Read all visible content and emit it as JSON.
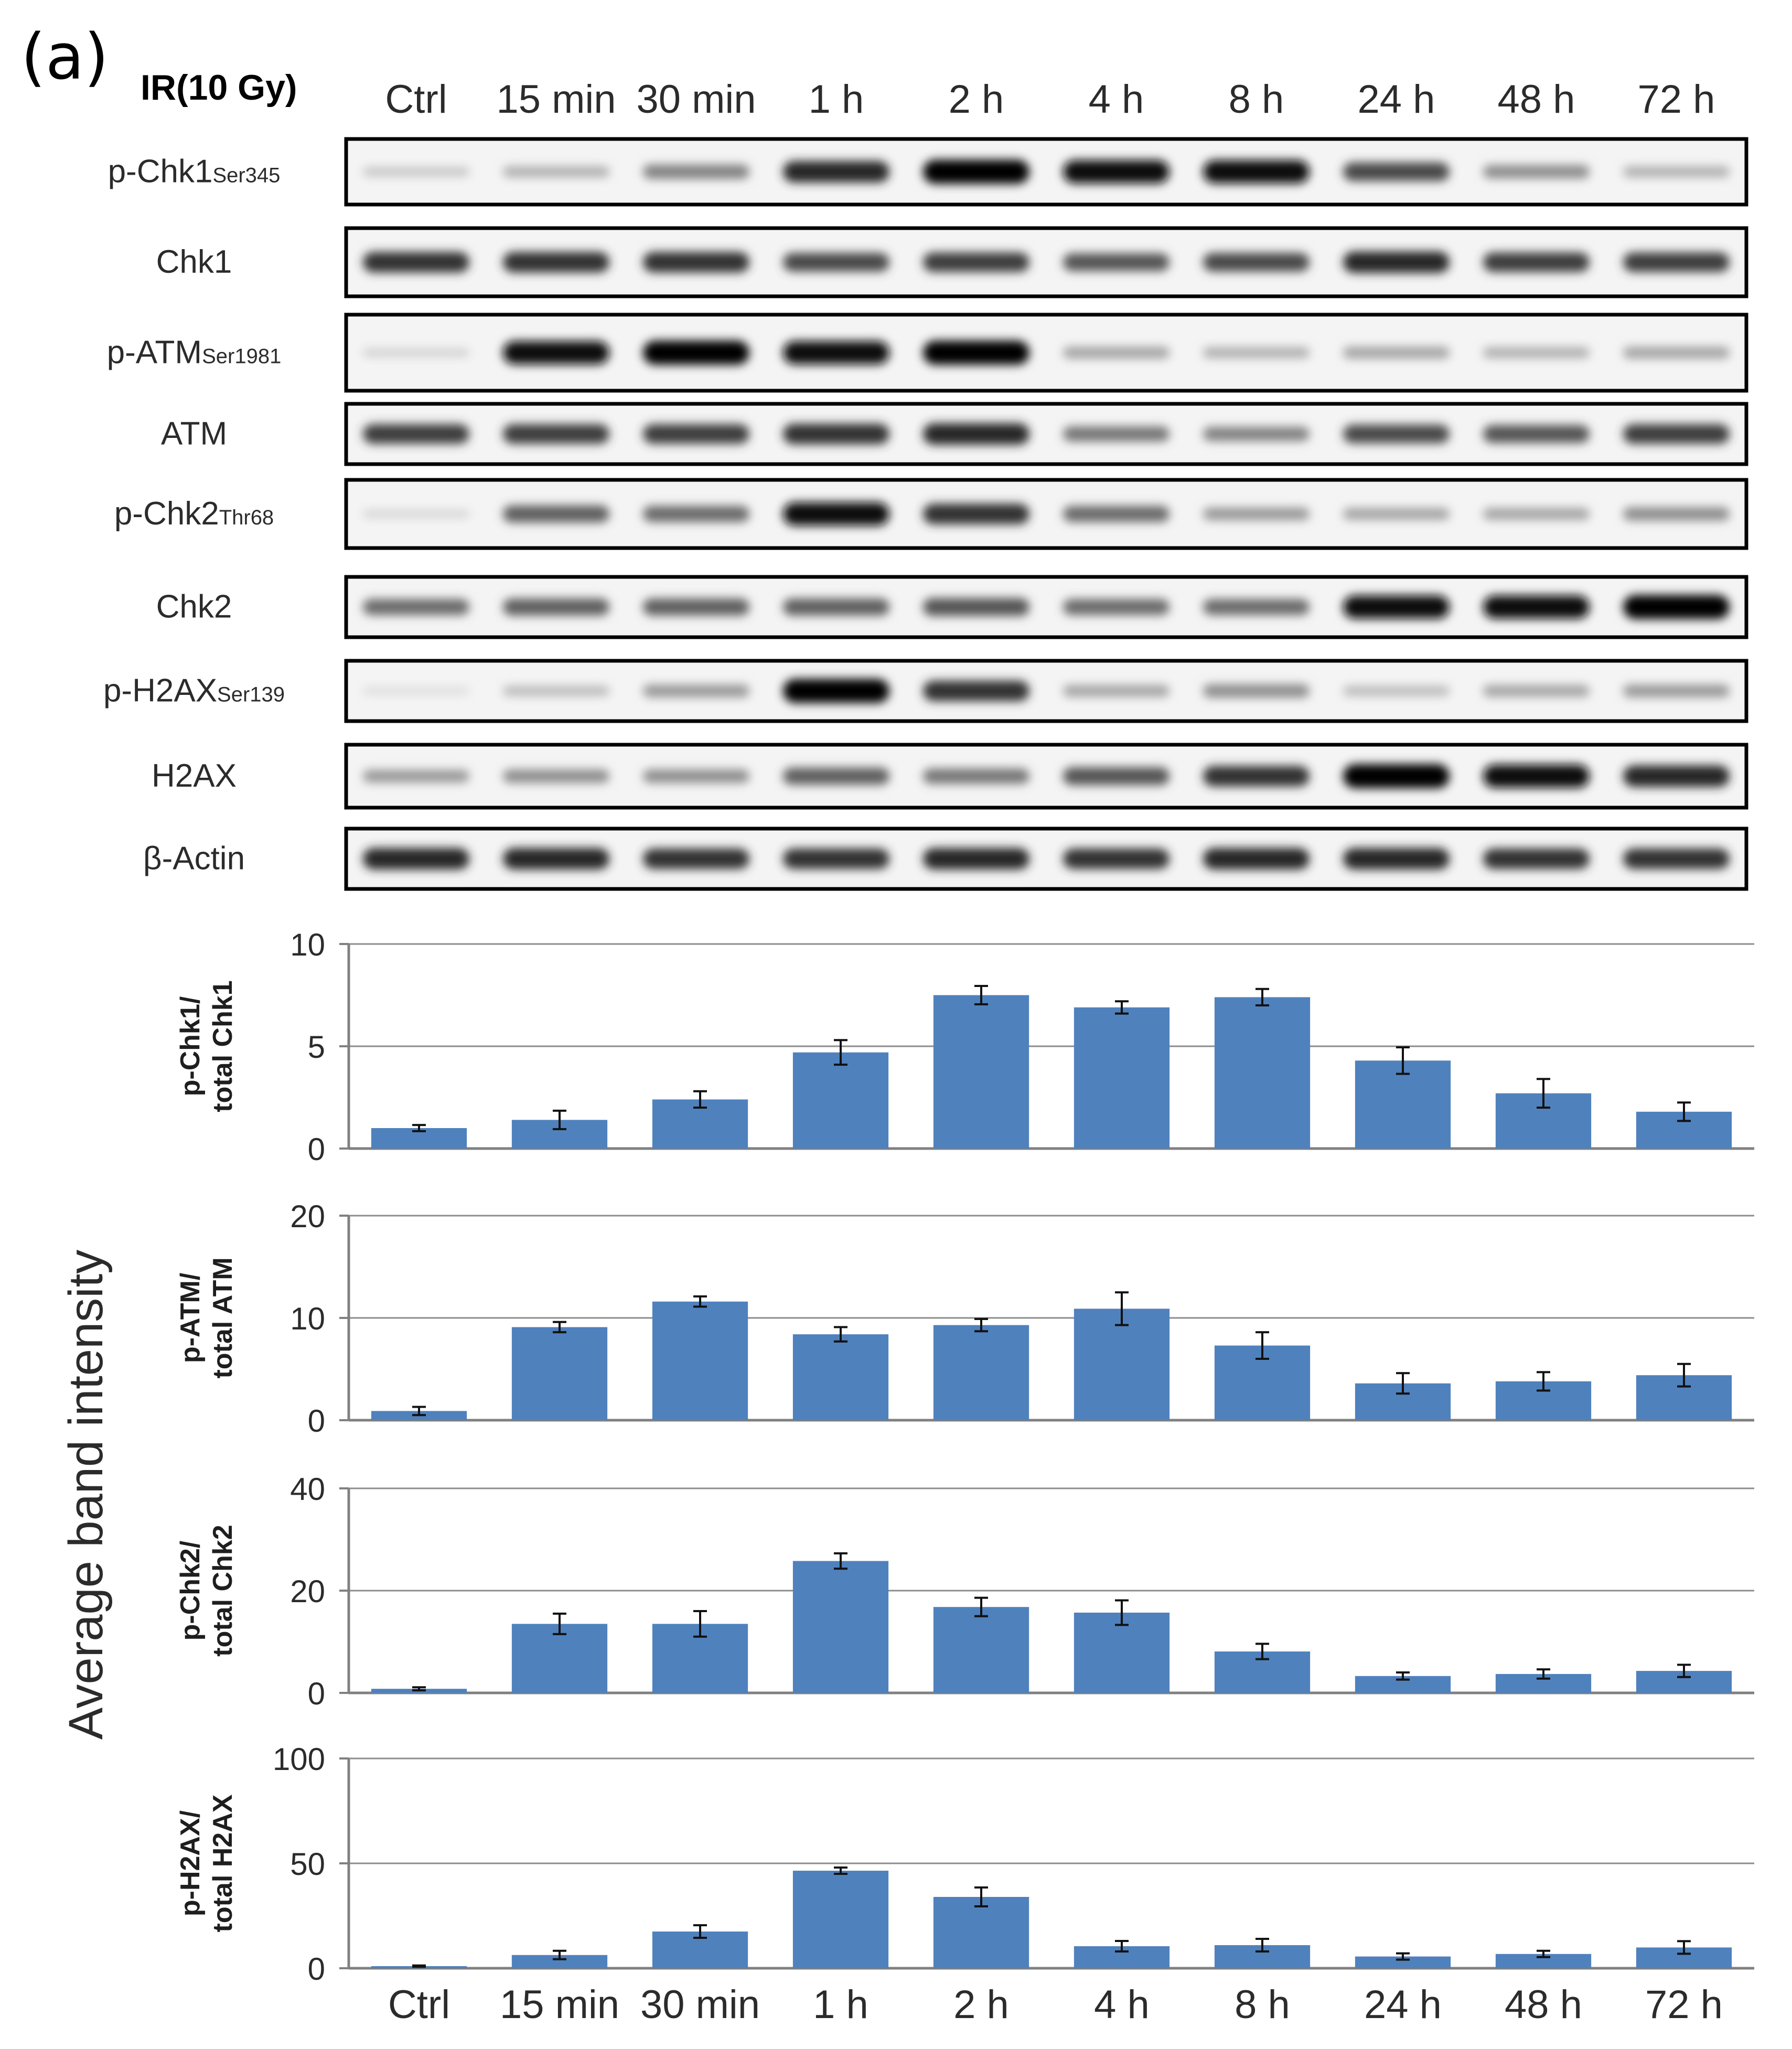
{
  "panel_label": "(a)",
  "treatment_label": "IR(10 Gy)",
  "lanes": [
    "Ctrl",
    "15 min",
    "30 min",
    "1 h",
    "2 h",
    "4 h",
    "8 h",
    "24 h",
    "48 h",
    "72 h"
  ],
  "blot_rows": [
    {
      "name": "p-Chk1",
      "sub": "Ser345",
      "intensity": [
        0.15,
        0.25,
        0.45,
        0.85,
        1.0,
        0.95,
        0.95,
        0.7,
        0.4,
        0.25
      ]
    },
    {
      "name": "Chk1",
      "sub": "",
      "intensity": [
        0.8,
        0.8,
        0.8,
        0.7,
        0.75,
        0.65,
        0.7,
        0.85,
        0.75,
        0.75
      ]
    },
    {
      "name": "p-ATM",
      "sub": "Ser1981",
      "intensity": [
        0.1,
        0.95,
        1.0,
        0.95,
        1.0,
        0.3,
        0.25,
        0.3,
        0.25,
        0.3
      ]
    },
    {
      "name": "ATM",
      "sub": "",
      "intensity": [
        0.75,
        0.75,
        0.75,
        0.8,
        0.85,
        0.5,
        0.45,
        0.7,
        0.65,
        0.75
      ]
    },
    {
      "name": "p-Chk2",
      "sub": "Thr68",
      "intensity": [
        0.08,
        0.6,
        0.55,
        0.95,
        0.8,
        0.55,
        0.35,
        0.3,
        0.3,
        0.4
      ]
    },
    {
      "name": "Chk2",
      "sub": "",
      "intensity": [
        0.55,
        0.6,
        0.6,
        0.6,
        0.65,
        0.55,
        0.55,
        0.95,
        0.95,
        1.0
      ]
    },
    {
      "name": "p-H2AX",
      "sub": "Ser139",
      "intensity": [
        0.05,
        0.2,
        0.35,
        1.0,
        0.8,
        0.3,
        0.4,
        0.2,
        0.3,
        0.35
      ]
    },
    {
      "name": "H2AX",
      "sub": "",
      "intensity": [
        0.35,
        0.4,
        0.4,
        0.6,
        0.5,
        0.65,
        0.8,
        1.0,
        0.95,
        0.85
      ]
    },
    {
      "name": "β-Actin",
      "sub": "",
      "intensity": [
        0.85,
        0.85,
        0.8,
        0.8,
        0.85,
        0.8,
        0.85,
        0.85,
        0.8,
        0.8
      ]
    }
  ],
  "y_axis_title": "Average band intensity",
  "bar_color": "#4f81bd",
  "chart_data": [
    {
      "type": "bar",
      "ylabel_line1": "p-Chk1/",
      "ylabel_line2": "total Chk1",
      "categories": [
        "Ctrl",
        "15 min",
        "30 min",
        "1 h",
        "2 h",
        "4 h",
        "8 h",
        "24 h",
        "48 h",
        "72 h"
      ],
      "values": [
        1.0,
        1.4,
        2.4,
        4.7,
        7.5,
        6.9,
        7.4,
        4.3,
        2.7,
        1.8
      ],
      "errors": [
        0.15,
        0.45,
        0.4,
        0.6,
        0.45,
        0.3,
        0.4,
        0.65,
        0.7,
        0.45
      ],
      "ylim": [
        0,
        10
      ],
      "yticks": [
        0,
        5,
        10
      ]
    },
    {
      "type": "bar",
      "ylabel_line1": "p-ATM/",
      "ylabel_line2": "total ATM",
      "categories": [
        "Ctrl",
        "15 min",
        "30 min",
        "1 h",
        "2 h",
        "4 h",
        "8 h",
        "24 h",
        "48 h",
        "72 h"
      ],
      "values": [
        0.9,
        9.1,
        11.6,
        8.4,
        9.3,
        10.9,
        7.3,
        3.6,
        3.8,
        4.4
      ],
      "errors": [
        0.4,
        0.5,
        0.5,
        0.7,
        0.6,
        1.6,
        1.3,
        1.0,
        0.9,
        1.1
      ],
      "ylim": [
        0,
        20
      ],
      "yticks": [
        0,
        10,
        20
      ]
    },
    {
      "type": "bar",
      "ylabel_line1": "p-Chk2/",
      "ylabel_line2": "total Chk2",
      "categories": [
        "Ctrl",
        "15 min",
        "30 min",
        "1 h",
        "2 h",
        "4 h",
        "8 h",
        "24 h",
        "48 h",
        "72 h"
      ],
      "values": [
        0.8,
        13.5,
        13.5,
        25.8,
        16.8,
        15.7,
        8.1,
        3.3,
        3.7,
        4.3
      ],
      "errors": [
        0.3,
        2.0,
        2.5,
        1.5,
        1.8,
        2.4,
        1.5,
        0.7,
        0.9,
        1.2
      ],
      "ylim": [
        0,
        40
      ],
      "yticks": [
        0,
        20,
        40
      ]
    },
    {
      "type": "bar",
      "ylabel_line1": "p-H2AX/",
      "ylabel_line2": "total H2AX",
      "categories": [
        "Ctrl",
        "15 min",
        "30 min",
        "1 h",
        "2 h",
        "4 h",
        "8 h",
        "24 h",
        "48 h",
        "72 h"
      ],
      "values": [
        1.0,
        6.3,
        17.5,
        46.5,
        34.0,
        10.5,
        11.0,
        5.6,
        6.8,
        9.9
      ],
      "errors": [
        0.3,
        2.0,
        3.0,
        1.5,
        4.5,
        2.5,
        3.0,
        1.5,
        1.5,
        3.0
      ],
      "ylim": [
        0,
        100
      ],
      "yticks": [
        0,
        50,
        100
      ]
    }
  ]
}
